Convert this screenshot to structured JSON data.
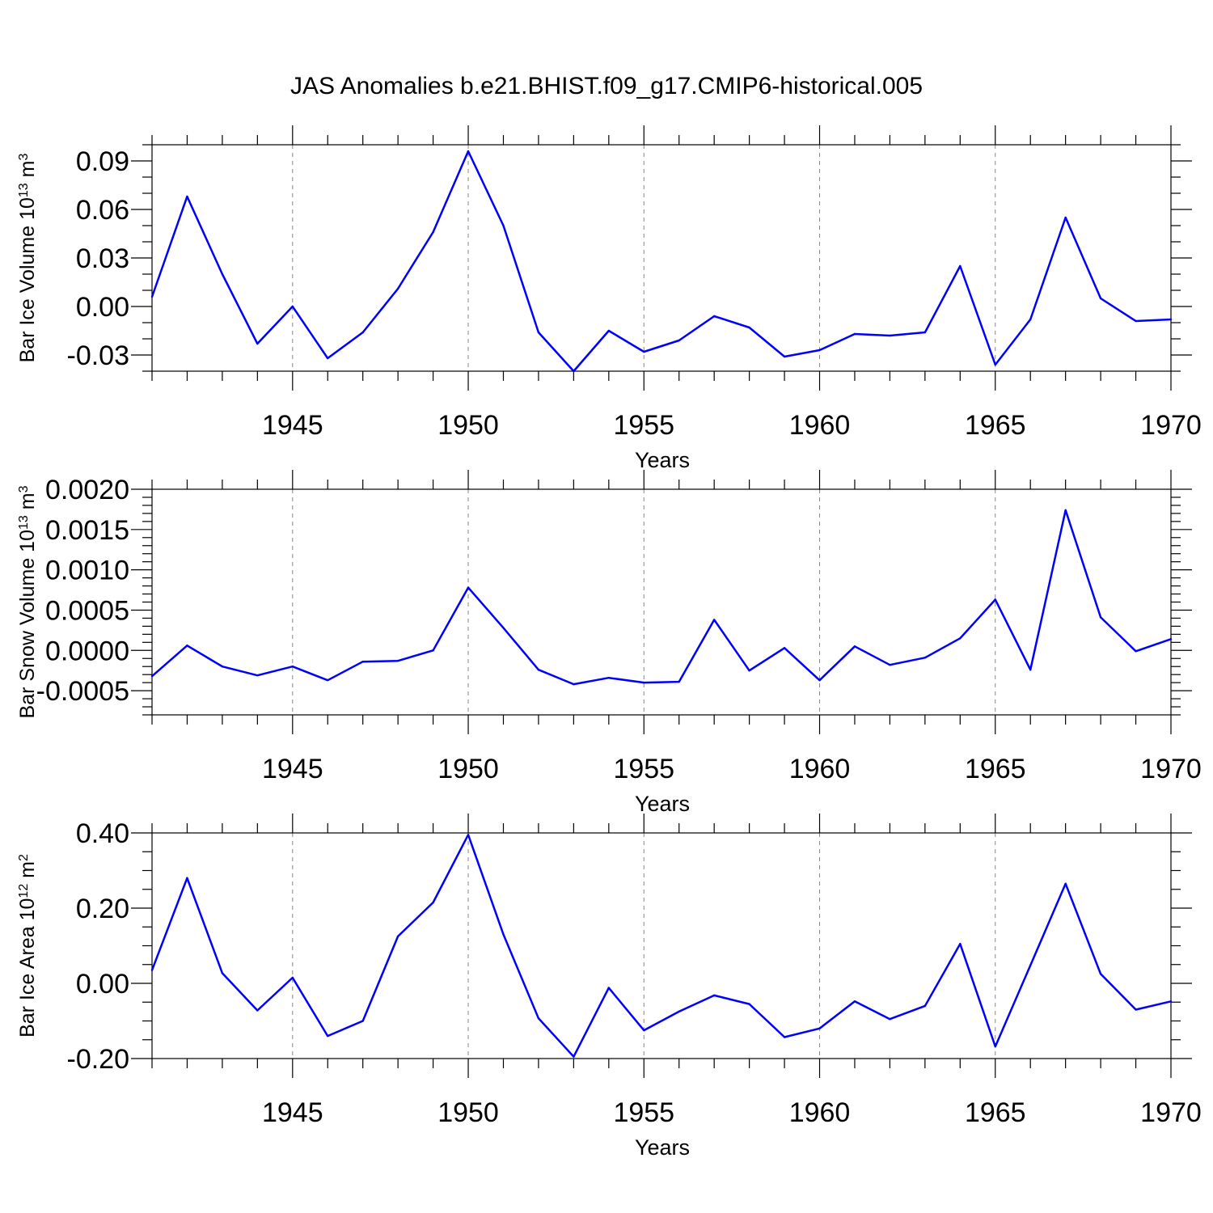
{
  "title": "JAS Anomalies b.e21.BHIST.f09_g17.CMIP6-historical.005",
  "chart_data": [
    {
      "type": "line",
      "ylabel": "Bar Ice Volume 10",
      "ylabel_exp": "13",
      "ylabel_unit": " m",
      "ylabel_unit_exp": "3",
      "xlabel": "Years",
      "xlim": [
        1941,
        1970
      ],
      "ylim": [
        -0.04,
        0.1
      ],
      "yticks": [
        -0.03,
        0.0,
        0.03,
        0.06,
        0.09
      ],
      "ytick_labels": [
        "-0.03",
        "0.00",
        "0.03",
        "0.06",
        "0.09"
      ],
      "yminor_step": 0.01,
      "xticks": [
        1945,
        1950,
        1955,
        1960,
        1965,
        1970
      ],
      "xtick_labels": [
        "1945",
        "1950",
        "1955",
        "1960",
        "1965",
        "1970"
      ],
      "grid_x": [
        1945,
        1950,
        1955,
        1960,
        1965
      ],
      "color": "#0000ff",
      "x": [
        1941,
        1942,
        1943,
        1944,
        1945,
        1946,
        1947,
        1948,
        1949,
        1950,
        1951,
        1952,
        1953,
        1954,
        1955,
        1956,
        1957,
        1958,
        1959,
        1960,
        1961,
        1962,
        1963,
        1964,
        1965,
        1966,
        1967,
        1968,
        1969,
        1970
      ],
      "values": [
        0.006,
        0.068,
        0.02,
        -0.023,
        0.0,
        -0.032,
        -0.016,
        0.011,
        0.046,
        0.096,
        0.05,
        -0.016,
        -0.04,
        -0.015,
        -0.028,
        -0.021,
        -0.006,
        -0.013,
        -0.031,
        -0.027,
        -0.017,
        -0.018,
        -0.016,
        0.025,
        -0.036,
        -0.008,
        0.055,
        0.005,
        -0.009,
        -0.008
      ]
    },
    {
      "type": "line",
      "ylabel": "Bar Snow Volume 10",
      "ylabel_exp": "13",
      "ylabel_unit": " m",
      "ylabel_unit_exp": "3",
      "xlabel": "Years",
      "xlim": [
        1941,
        1970
      ],
      "ylim": [
        -0.0008,
        0.002
      ],
      "yticks": [
        -0.0005,
        0.0,
        0.0005,
        0.001,
        0.0015,
        0.002
      ],
      "ytick_labels": [
        "-0.0005",
        "0.0000",
        "0.0005",
        "0.0010",
        "0.0015",
        "0.0020"
      ],
      "yminor_step": 0.0001,
      "xticks": [
        1945,
        1950,
        1955,
        1960,
        1965,
        1970
      ],
      "xtick_labels": [
        "1945",
        "1950",
        "1955",
        "1960",
        "1965",
        "1970"
      ],
      "grid_x": [
        1945,
        1950,
        1955,
        1960,
        1965
      ],
      "color": "#0000ff",
      "x": [
        1941,
        1942,
        1943,
        1944,
        1945,
        1946,
        1947,
        1948,
        1949,
        1950,
        1951,
        1952,
        1953,
        1954,
        1955,
        1956,
        1957,
        1958,
        1959,
        1960,
        1961,
        1962,
        1963,
        1964,
        1965,
        1966,
        1967,
        1968,
        1969,
        1970
      ],
      "values": [
        -0.00032,
        6e-05,
        -0.0002,
        -0.00031,
        -0.0002,
        -0.00037,
        -0.00014,
        -0.00013,
        0.0,
        0.00078,
        0.00028,
        -0.00024,
        -0.00042,
        -0.00034,
        -0.0004,
        -0.00039,
        0.00038,
        -0.00025,
        3e-05,
        -0.00037,
        5e-05,
        -0.00018,
        -9e-05,
        0.00015,
        0.00063,
        -0.00024,
        0.00174,
        0.00041,
        -1e-05,
        0.00014
      ]
    },
    {
      "type": "line",
      "ylabel": "Bar Ice Area 10",
      "ylabel_exp": "12",
      "ylabel_unit": " m",
      "ylabel_unit_exp": "2",
      "xlabel": "Years",
      "xlim": [
        1941,
        1970
      ],
      "ylim": [
        -0.2,
        0.4
      ],
      "yticks": [
        -0.2,
        0.0,
        0.2,
        0.4
      ],
      "ytick_labels": [
        "-0.20",
        "0.00",
        "0.20",
        "0.40"
      ],
      "yminor_step": 0.05,
      "xticks": [
        1945,
        1950,
        1955,
        1960,
        1965,
        1970
      ],
      "xtick_labels": [
        "1945",
        "1950",
        "1955",
        "1960",
        "1965",
        "1970"
      ],
      "grid_x": [
        1945,
        1950,
        1955,
        1960,
        1965
      ],
      "color": "#0000ff",
      "x": [
        1941,
        1942,
        1943,
        1944,
        1945,
        1946,
        1947,
        1948,
        1949,
        1950,
        1951,
        1952,
        1953,
        1954,
        1955,
        1956,
        1957,
        1958,
        1959,
        1960,
        1961,
        1962,
        1963,
        1964,
        1965,
        1966,
        1967,
        1968,
        1969,
        1970
      ],
      "values": [
        0.035,
        0.28,
        0.027,
        -0.072,
        0.015,
        -0.14,
        -0.1,
        0.125,
        0.215,
        0.395,
        0.13,
        -0.093,
        -0.195,
        -0.012,
        -0.125,
        -0.075,
        -0.032,
        -0.055,
        -0.143,
        -0.12,
        -0.048,
        -0.095,
        -0.06,
        0.105,
        -0.168,
        0.048,
        0.265,
        0.025,
        -0.07,
        -0.048
      ]
    }
  ]
}
